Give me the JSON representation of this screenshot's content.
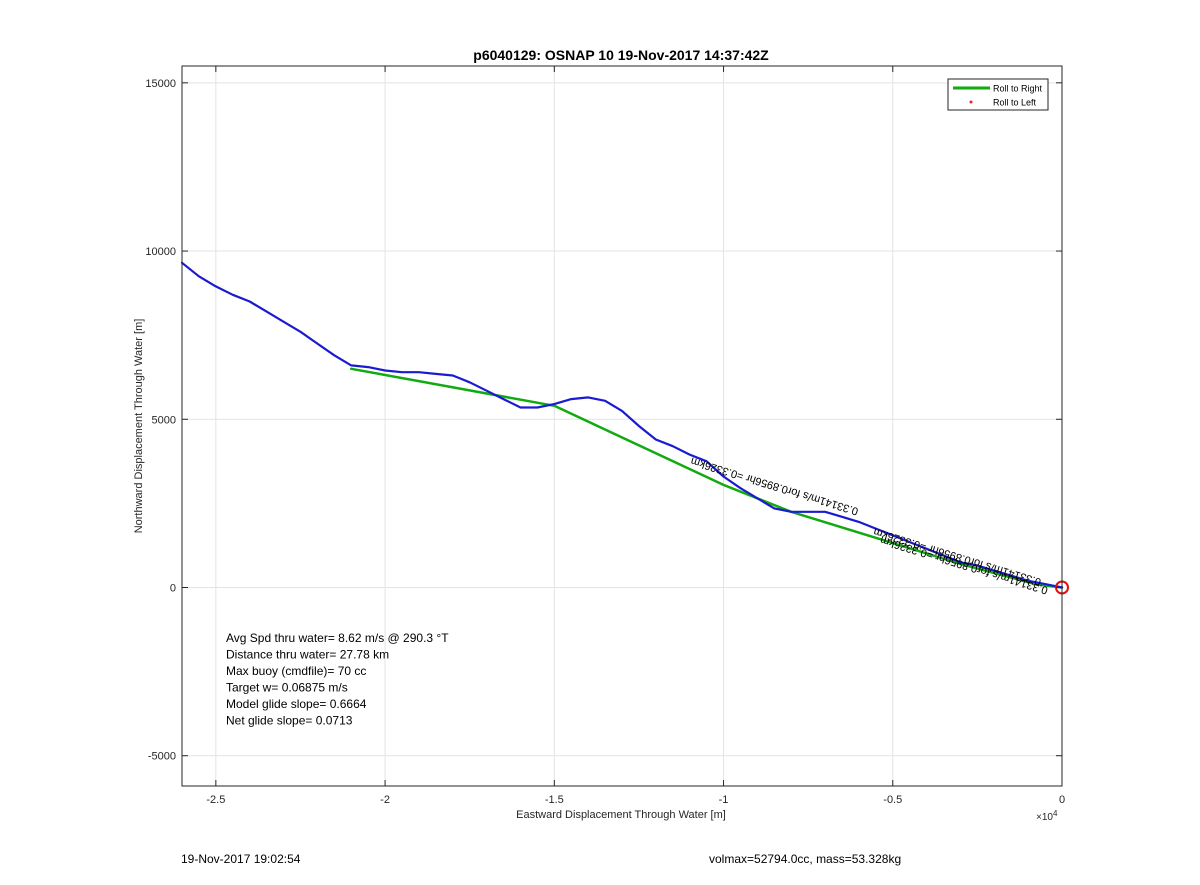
{
  "chart_data": {
    "type": "line",
    "title": "p6040129: OSNAP 10 19-Nov-2017 14:37:42Z",
    "xlabel": "Eastward Displacement Through Water [m]",
    "ylabel": "Northward Displacement Through Water [m]",
    "xlim": [
      -26000,
      0
    ],
    "ylim": [
      -5900,
      15500
    ],
    "x_exponent_label": "×10",
    "x_exponent_power": "4",
    "x_ticks": [
      {
        "value": -25000,
        "label": "-2.5"
      },
      {
        "value": -20000,
        "label": "-2"
      },
      {
        "value": -15000,
        "label": "-1.5"
      },
      {
        "value": -10000,
        "label": "-1"
      },
      {
        "value": -5000,
        "label": "-0.5"
      },
      {
        "value": 0,
        "label": "0"
      }
    ],
    "y_ticks": [
      {
        "value": -5000,
        "label": "-5000"
      },
      {
        "value": 0,
        "label": "0"
      },
      {
        "value": 5000,
        "label": "5000"
      },
      {
        "value": 10000,
        "label": "10000"
      },
      {
        "value": 15000,
        "label": "15000"
      }
    ],
    "grid": true,
    "legend_position": "top-right",
    "legend": [
      {
        "name": "Roll to Right",
        "color": "#11aa11",
        "marker": "line"
      },
      {
        "name": "Roll to Left",
        "color": "#ee2222",
        "marker": "dot"
      }
    ],
    "series": [
      {
        "color": "#11aa11",
        "style": "line",
        "x": [
          0,
          -800,
          -3000,
          -8000,
          -10000,
          -15000,
          -21000
        ],
        "y": [
          0,
          100,
          700,
          2250,
          3050,
          5400,
          6500
        ]
      },
      {
        "color": "#1a1ad0",
        "style": "line",
        "x": [
          0,
          -500,
          -1000,
          -1500,
          -2000,
          -2500,
          -3000,
          -3500,
          -4000,
          -4500,
          -5000,
          -5500,
          -6000,
          -6500,
          -7000,
          -7500,
          -8000,
          -8500,
          -9000,
          -9500,
          -10000,
          -10500,
          -11000,
          -11500,
          -12000,
          -12500,
          -13000,
          -13500,
          -14000,
          -14500,
          -15000,
          -15500,
          -16000,
          -16500,
          -17000,
          -17500,
          -18000,
          -18500,
          -19000,
          -19500,
          -20000,
          -20500,
          -21000,
          -21500,
          -22000,
          -22500,
          -23000,
          -23500,
          -24000,
          -24500,
          -25000,
          -25500,
          -26000
        ],
        "y": [
          0,
          100,
          200,
          350,
          500,
          650,
          750,
          950,
          1150,
          1350,
          1550,
          1750,
          1950,
          2100,
          2250,
          2250,
          2250,
          2350,
          2650,
          2950,
          3300,
          3750,
          3950,
          4200,
          4400,
          4800,
          5250,
          5550,
          5650,
          5600,
          5450,
          5350,
          5350,
          5600,
          5850,
          6100,
          6300,
          6350,
          6400,
          6400,
          6450,
          6550,
          6600,
          6900,
          7250,
          7600,
          7900,
          8200,
          8500,
          8700,
          8950,
          9250,
          9650
        ]
      }
    ],
    "end_marker": {
      "x": 0,
      "y": 0,
      "color": "#dd1111"
    },
    "annotations": [
      {
        "text": "0.33141m/s for0.8956hr =0.3326km",
        "x": -6000,
        "y": 2350,
        "rotation": 197
      },
      {
        "text": "0.33141m/s for0.8956hr =0.3326km",
        "x": -400,
        "y": 0,
        "rotation": 197
      },
      {
        "text": "0.33141m/s for0.8956hr =0.3326km",
        "x": -600,
        "y": 250,
        "rotation": 197
      }
    ],
    "stats": [
      "Avg Spd thru water=  8.62 m/s @ 290.3 °T",
      "Distance thru water= 27.78 km",
      "Max buoy (cmdfile)= 70 cc",
      "Target w= 0.06875 m/s",
      "Model glide slope= 0.6664",
      "Net glide slope= 0.0713"
    ]
  },
  "footer": {
    "timestamp": "19-Nov-2017 19:02:54",
    "info": "volmax=52794.0cc, mass=53.328kg"
  }
}
